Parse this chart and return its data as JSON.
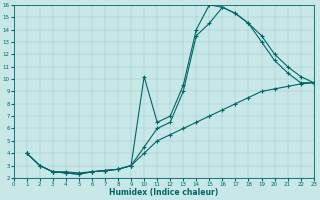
{
  "xlabel": "Humidex (Indice chaleur)",
  "bg_color": "#c8e8e8",
  "line_color": "#006666",
  "xlim": [
    0,
    23
  ],
  "ylim": [
    2,
    16
  ],
  "xticks": [
    0,
    1,
    2,
    3,
    4,
    5,
    6,
    7,
    8,
    9,
    10,
    11,
    12,
    13,
    14,
    15,
    16,
    17,
    18,
    19,
    20,
    21,
    22,
    23
  ],
  "yticks": [
    2,
    3,
    4,
    5,
    6,
    7,
    8,
    9,
    10,
    11,
    12,
    13,
    14,
    15,
    16
  ],
  "curve1_x": [
    1,
    2,
    3,
    4,
    5,
    6,
    7,
    8,
    9,
    10,
    11,
    12,
    13,
    14,
    15,
    16,
    17,
    18,
    19,
    20,
    21,
    22,
    23
  ],
  "curve1_y": [
    4.0,
    3.0,
    2.5,
    2.5,
    2.4,
    2.5,
    2.6,
    2.7,
    3.0,
    10.2,
    6.5,
    7.0,
    9.5,
    14.0,
    16.0,
    15.8,
    15.3,
    14.5,
    13.5,
    12.0,
    11.0,
    10.2,
    9.7
  ],
  "curve2_x": [
    1,
    2,
    3,
    4,
    5,
    6,
    7,
    8,
    9,
    10,
    11,
    12,
    13,
    14,
    15,
    16,
    17,
    18,
    19,
    20,
    21,
    22,
    23
  ],
  "curve2_y": [
    4.0,
    3.0,
    2.5,
    2.4,
    2.3,
    2.5,
    2.6,
    2.7,
    3.0,
    4.5,
    6.0,
    6.5,
    9.0,
    13.5,
    14.5,
    15.8,
    15.3,
    14.5,
    13.0,
    11.5,
    10.5,
    9.7,
    9.7
  ],
  "curve3_x": [
    1,
    2,
    3,
    4,
    5,
    6,
    7,
    8,
    9,
    10,
    11,
    12,
    13,
    14,
    15,
    16,
    17,
    18,
    19,
    20,
    21,
    22,
    23
  ],
  "curve3_y": [
    4.0,
    3.0,
    2.5,
    2.4,
    2.3,
    2.5,
    2.6,
    2.7,
    3.0,
    4.0,
    5.0,
    5.5,
    6.0,
    6.5,
    7.0,
    7.5,
    8.0,
    8.5,
    9.0,
    9.2,
    9.4,
    9.6,
    9.7
  ]
}
